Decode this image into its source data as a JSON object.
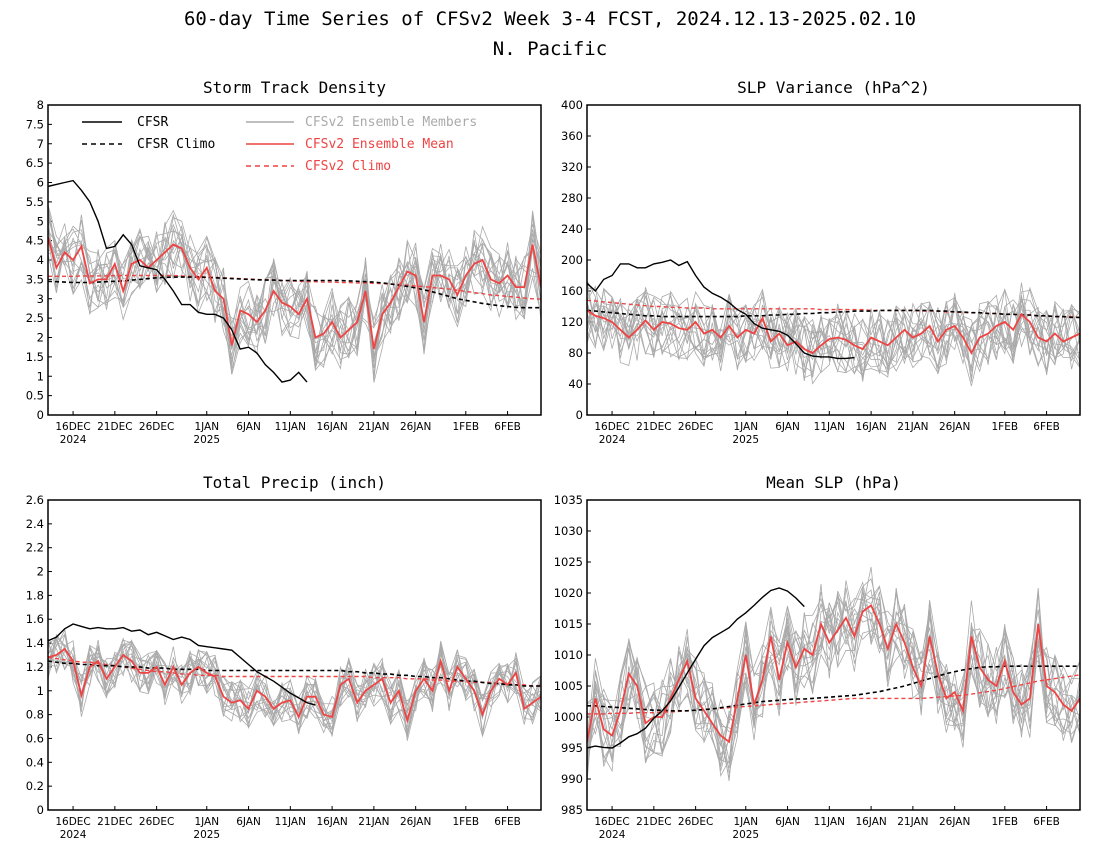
{
  "title": "60-day Time Series of CFSv2 Week 3-4 FCST, 2024.12.13-2025.02.10",
  "subtitle": "N. Pacific",
  "colors": {
    "cfsr": "#000000",
    "members": "#aaaaaa",
    "mean": "#ee4444",
    "clim_fcst": "#ee4444"
  },
  "legend": [
    {
      "label": "CFSR",
      "style": "solid",
      "color": "#000000"
    },
    {
      "label": "CFSR Climo",
      "style": "dashed",
      "color": "#000000"
    },
    {
      "label": "CFSv2 Ensemble Members",
      "style": "solid",
      "color": "#aaaaaa"
    },
    {
      "label": "CFSv2 Ensemble Mean",
      "style": "solid",
      "color": "#ee4444"
    },
    {
      "label": "CFSv2 Climo",
      "style": "dashed",
      "color": "#ee4444"
    }
  ],
  "x_ticks": [
    {
      "label": "16DEC",
      "sub": "2024",
      "day": 3
    },
    {
      "label": "21DEC",
      "sub": "",
      "day": 8
    },
    {
      "label": "26DEC",
      "sub": "",
      "day": 13
    },
    {
      "label": "1JAN",
      "sub": "2025",
      "day": 19
    },
    {
      "label": "6JAN",
      "sub": "",
      "day": 24
    },
    {
      "label": "11JAN",
      "sub": "",
      "day": 29
    },
    {
      "label": "16JAN",
      "sub": "",
      "day": 34
    },
    {
      "label": "21JAN",
      "sub": "",
      "day": 39
    },
    {
      "label": "26JAN",
      "sub": "",
      "day": 44
    },
    {
      "label": "1FEB",
      "sub": "",
      "day": 50
    },
    {
      "label": "6FEB",
      "sub": "",
      "day": 55
    }
  ],
  "chart_data": [
    {
      "type": "line",
      "title": "Storm Track Density",
      "x_range": [
        "2024-12-13",
        "2025-02-10"
      ],
      "ylim": [
        0,
        8
      ],
      "yticks": [
        "0",
        "0.5",
        "1",
        "1.5",
        "2",
        "2.5",
        "3",
        "3.5",
        "4",
        "4.5",
        "5",
        "5.5",
        "6",
        "6.5",
        "7",
        "7.5",
        "8"
      ],
      "series": [
        {
          "name": "CFSR",
          "values": [
            5.9,
            5.95,
            6.0,
            6.05,
            5.8,
            5.5,
            5.0,
            4.3,
            4.35,
            4.65,
            4.4,
            3.85,
            3.8,
            3.75,
            3.5,
            3.2,
            2.85,
            2.85,
            2.65,
            2.6,
            2.6,
            2.5,
            2.2,
            1.7,
            1.75,
            1.6,
            1.3,
            1.1,
            0.85,
            0.9,
            1.1,
            0.85
          ]
        },
        {
          "name": "CFSR Climo",
          "values": [
            3.45,
            3.44,
            3.43,
            3.42,
            3.42,
            3.42,
            3.43,
            3.44,
            3.45,
            3.46,
            3.48,
            3.5,
            3.52,
            3.54,
            3.55,
            3.56,
            3.56,
            3.56,
            3.56,
            3.55,
            3.54,
            3.53,
            3.52,
            3.51,
            3.5,
            3.49,
            3.48,
            3.48,
            3.47,
            3.47,
            3.47,
            3.47,
            3.47,
            3.47,
            3.47,
            3.47,
            3.46,
            3.45,
            3.44,
            3.43,
            3.41,
            3.38,
            3.35,
            3.32,
            3.28,
            3.23,
            3.18,
            3.12,
            3.06,
            3.0,
            2.96,
            2.92,
            2.88,
            2.85,
            2.82,
            2.8,
            2.78,
            2.77,
            2.77,
            2.77
          ]
        },
        {
          "name": "CFSv2 Ensemble Mean",
          "values": [
            4.6,
            3.8,
            4.2,
            4.0,
            4.35,
            3.4,
            3.5,
            3.5,
            3.9,
            3.2,
            3.9,
            4.0,
            3.8,
            4.0,
            4.2,
            4.4,
            4.3,
            3.8,
            3.5,
            3.8,
            3.2,
            3.0,
            1.8,
            2.7,
            2.6,
            2.4,
            2.7,
            3.2,
            2.9,
            2.8,
            2.6,
            3.0,
            2.0,
            2.1,
            2.4,
            2.0,
            2.2,
            2.4,
            3.2,
            1.7,
            2.6,
            2.9,
            3.3,
            3.7,
            3.6,
            2.4,
            3.6,
            3.6,
            3.5,
            3.1,
            3.6,
            3.9,
            4.0,
            3.5,
            3.4,
            3.6,
            3.3,
            3.3,
            4.4,
            3.3
          ]
        },
        {
          "name": "CFSv2 Climo",
          "values": [
            3.58,
            3.58,
            3.58,
            3.58,
            3.59,
            3.59,
            3.59,
            3.59,
            3.6,
            3.6,
            3.6,
            3.6,
            3.6,
            3.6,
            3.6,
            3.6,
            3.59,
            3.58,
            3.57,
            3.56,
            3.55,
            3.54,
            3.53,
            3.52,
            3.51,
            3.5,
            3.49,
            3.48,
            3.47,
            3.46,
            3.45,
            3.44,
            3.44,
            3.43,
            3.43,
            3.42,
            3.42,
            3.41,
            3.41,
            3.4,
            3.39,
            3.38,
            3.37,
            3.35,
            3.33,
            3.31,
            3.29,
            3.27,
            3.25,
            3.22,
            3.19,
            3.16,
            3.13,
            3.1,
            3.08,
            3.06,
            3.04,
            3.02,
            3.0,
            2.99
          ]
        }
      ]
    },
    {
      "type": "line",
      "title": "SLP Variance (hPa^2)",
      "x_range": [
        "2024-12-13",
        "2025-02-10"
      ],
      "ylim": [
        0,
        400
      ],
      "yticks": [
        "0",
        "40",
        "80",
        "120",
        "160",
        "200",
        "240",
        "280",
        "320",
        "360",
        "400"
      ],
      "series": [
        {
          "name": "CFSR",
          "values": [
            170,
            160,
            175,
            180,
            195,
            195,
            190,
            190,
            195,
            197,
            200,
            193,
            198,
            180,
            165,
            157,
            152,
            145,
            136,
            130,
            118,
            112,
            110,
            108,
            103,
            92,
            80,
            76,
            75,
            75,
            73,
            73,
            74
          ]
        },
        {
          "name": "CFSR Climo",
          "values": [
            135,
            134,
            133,
            132,
            131,
            130,
            129,
            128,
            128,
            127,
            127,
            127,
            127,
            127,
            127,
            127,
            127,
            127,
            127,
            128,
            128,
            128,
            129,
            129,
            130,
            130,
            131,
            131,
            132,
            132,
            133,
            133,
            134,
            134,
            134,
            135,
            135,
            135,
            135,
            135,
            135,
            135,
            134,
            134,
            133,
            133,
            132,
            132,
            131,
            131,
            130,
            130,
            129,
            129,
            128,
            128,
            127,
            127,
            126,
            126
          ]
        },
        {
          "name": "CFSv2 Ensemble Mean",
          "values": [
            135,
            128,
            125,
            120,
            110,
            100,
            110,
            122,
            110,
            120,
            118,
            112,
            110,
            120,
            105,
            110,
            100,
            115,
            100,
            110,
            105,
            125,
            95,
            105,
            90,
            95,
            85,
            80,
            90,
            98,
            100,
            97,
            90,
            85,
            100,
            95,
            90,
            100,
            110,
            100,
            105,
            115,
            95,
            110,
            115,
            100,
            80,
            100,
            105,
            115,
            120,
            110,
            130,
            120,
            100,
            95,
            105,
            95,
            100,
            105
          ]
        },
        {
          "name": "CFSv2 Climo",
          "values": [
            148,
            147,
            146,
            145,
            144,
            143,
            142,
            141,
            140,
            140,
            139,
            139,
            138,
            138,
            138,
            137,
            137,
            137,
            137,
            137,
            137,
            137,
            137,
            137,
            137,
            137,
            137,
            137,
            136,
            136,
            136,
            136,
            136,
            136,
            135,
            135,
            135,
            135,
            135,
            135,
            134,
            134,
            134,
            133,
            133,
            132,
            132,
            132,
            131,
            131,
            130,
            130,
            129,
            129,
            128,
            128,
            127,
            127,
            127,
            126
          ]
        }
      ]
    },
    {
      "type": "line",
      "title": "Total Precip (inch)",
      "x_range": [
        "2024-12-13",
        "2025-02-10"
      ],
      "ylim": [
        0,
        2.6
      ],
      "yticks": [
        "0",
        "0.2",
        "0.4",
        "0.6",
        "0.8",
        "1",
        "1.2",
        "1.4",
        "1.6",
        "1.8",
        "2",
        "2.2",
        "2.4",
        "2.6"
      ],
      "series": [
        {
          "name": "CFSR",
          "values": [
            1.42,
            1.45,
            1.52,
            1.56,
            1.54,
            1.52,
            1.53,
            1.52,
            1.52,
            1.53,
            1.5,
            1.51,
            1.47,
            1.49,
            1.46,
            1.43,
            1.45,
            1.43,
            1.38,
            1.37,
            1.36,
            1.35,
            1.34,
            1.28,
            1.22,
            1.16,
            1.12,
            1.08,
            1.03,
            0.98,
            0.94,
            0.9,
            0.88
          ]
        },
        {
          "name": "CFSR Climo",
          "values": [
            1.25,
            1.24,
            1.23,
            1.23,
            1.22,
            1.22,
            1.21,
            1.21,
            1.21,
            1.2,
            1.2,
            1.2,
            1.19,
            1.19,
            1.19,
            1.18,
            1.18,
            1.18,
            1.18,
            1.17,
            1.17,
            1.17,
            1.17,
            1.17,
            1.17,
            1.17,
            1.17,
            1.17,
            1.17,
            1.17,
            1.17,
            1.17,
            1.17,
            1.17,
            1.17,
            1.17,
            1.16,
            1.16,
            1.15,
            1.15,
            1.14,
            1.14,
            1.13,
            1.13,
            1.12,
            1.12,
            1.11,
            1.11,
            1.1,
            1.09,
            1.08,
            1.08,
            1.07,
            1.06,
            1.06,
            1.05,
            1.05,
            1.04,
            1.04,
            1.04
          ]
        },
        {
          "name": "CFSv2 Ensemble Mean",
          "values": [
            1.28,
            1.3,
            1.35,
            1.25,
            0.96,
            1.2,
            1.25,
            1.1,
            1.2,
            1.3,
            1.25,
            1.15,
            1.15,
            1.2,
            1.05,
            1.2,
            1.05,
            1.15,
            1.2,
            1.15,
            1.12,
            0.95,
            0.9,
            0.92,
            0.85,
            1.0,
            0.95,
            0.85,
            0.9,
            0.92,
            0.78,
            0.95,
            0.95,
            0.8,
            0.78,
            1.05,
            1.1,
            0.9,
            1.0,
            1.05,
            1.1,
            0.9,
            1.0,
            0.75,
            1.0,
            1.1,
            1.0,
            1.25,
            1.0,
            1.2,
            1.1,
            1.0,
            0.8,
            1.0,
            1.1,
            1.05,
            1.15,
            0.85,
            0.9,
            0.95
          ]
        },
        {
          "name": "CFSv2 Climo",
          "values": [
            1.28,
            1.27,
            1.26,
            1.25,
            1.24,
            1.24,
            1.23,
            1.22,
            1.21,
            1.2,
            1.19,
            1.18,
            1.17,
            1.16,
            1.16,
            1.15,
            1.14,
            1.14,
            1.13,
            1.13,
            1.13,
            1.12,
            1.12,
            1.12,
            1.12,
            1.12,
            1.12,
            1.12,
            1.12,
            1.12,
            1.12,
            1.12,
            1.12,
            1.12,
            1.12,
            1.12,
            1.12,
            1.12,
            1.12,
            1.11,
            1.11,
            1.11,
            1.11,
            1.1,
            1.1,
            1.1,
            1.09,
            1.09,
            1.08,
            1.08,
            1.08,
            1.07,
            1.07,
            1.07,
            1.06,
            1.06,
            1.05,
            1.05,
            1.04,
            1.04
          ]
        }
      ]
    },
    {
      "type": "line",
      "title": "Mean SLP (hPa)",
      "x_range": [
        "2024-12-13",
        "2025-02-10"
      ],
      "ylim": [
        985,
        1035
      ],
      "yticks": [
        "985",
        "990",
        "995",
        "1000",
        "1005",
        "1010",
        "1015",
        "1020",
        "1025",
        "1030",
        "1035"
      ],
      "series": [
        {
          "name": "CFSR",
          "values": [
            995,
            995.3,
            995.1,
            995,
            995.8,
            996.8,
            997.3,
            998.2,
            999.8,
            1001,
            1002.6,
            1004.8,
            1007.1,
            1009.3,
            1011.5,
            1012.8,
            1013.6,
            1014.4,
            1015.8,
            1016.8,
            1018,
            1019.3,
            1020.4,
            1020.8,
            1020.3,
            1019.2,
            1017.8
          ]
        },
        {
          "name": "CFSR Climo",
          "values": [
            1001.8,
            1001.8,
            1001.7,
            1001.6,
            1001.5,
            1001.4,
            1001.3,
            1001.2,
            1001.1,
            1001.1,
            1001,
            1001,
            1001,
            1001.1,
            1001.2,
            1001.3,
            1001.5,
            1001.7,
            1001.9,
            1002.1,
            1002.3,
            1002.5,
            1002.6,
            1002.7,
            1002.8,
            1002.9,
            1002.9,
            1003,
            1003.1,
            1003.2,
            1003.3,
            1003.4,
            1003.5,
            1003.7,
            1003.9,
            1004.1,
            1004.4,
            1004.7,
            1005,
            1005.4,
            1005.8,
            1006.2,
            1006.6,
            1007,
            1007.3,
            1007.6,
            1007.8,
            1008,
            1008.1,
            1008.1,
            1008.2,
            1008.2,
            1008.2,
            1008.2,
            1008.2,
            1008.2,
            1008.2,
            1008.2,
            1008.2,
            1008.2
          ]
        },
        {
          "name": "CFSv2 Ensemble Mean",
          "values": [
            996,
            1003,
            998,
            997,
            1001,
            1007,
            1005,
            999,
            1000,
            1000,
            1003,
            1006,
            1009,
            1003,
            1001,
            999,
            997,
            996,
            1003,
            1010,
            1002,
            1006,
            1013,
            1006,
            1012,
            1008,
            1011,
            1010,
            1015,
            1012,
            1014,
            1016,
            1013,
            1017,
            1018,
            1015,
            1011,
            1015,
            1012,
            1008,
            1005,
            1013,
            1007,
            1003,
            1004,
            1001,
            1013,
            1008,
            1006,
            1005,
            1009,
            1004,
            1002,
            1003,
            1015,
            1005,
            1004,
            1002,
            1001,
            1003
          ]
        },
        {
          "name": "CFSv2 Climo",
          "values": [
            1000.5,
            1000.5,
            1000.5,
            1000.6,
            1000.6,
            1000.6,
            1000.7,
            1000.7,
            1000.7,
            1000.8,
            1000.8,
            1000.9,
            1001,
            1001.1,
            1001.2,
            1001.3,
            1001.4,
            1001.5,
            1001.6,
            1001.7,
            1001.8,
            1001.9,
            1002,
            1002.1,
            1002.2,
            1002.3,
            1002.4,
            1002.5,
            1002.6,
            1002.7,
            1002.8,
            1002.9,
            1003,
            1003,
            1003,
            1003,
            1003,
            1003,
            1003,
            1003,
            1003,
            1003.1,
            1003.2,
            1003.3,
            1003.4,
            1003.5,
            1003.7,
            1003.9,
            1004.1,
            1004.3,
            1004.6,
            1004.9,
            1005.2,
            1005.5,
            1005.8,
            1006,
            1006.2,
            1006.4,
            1006.6,
            1006.8
          ]
        }
      ]
    }
  ]
}
